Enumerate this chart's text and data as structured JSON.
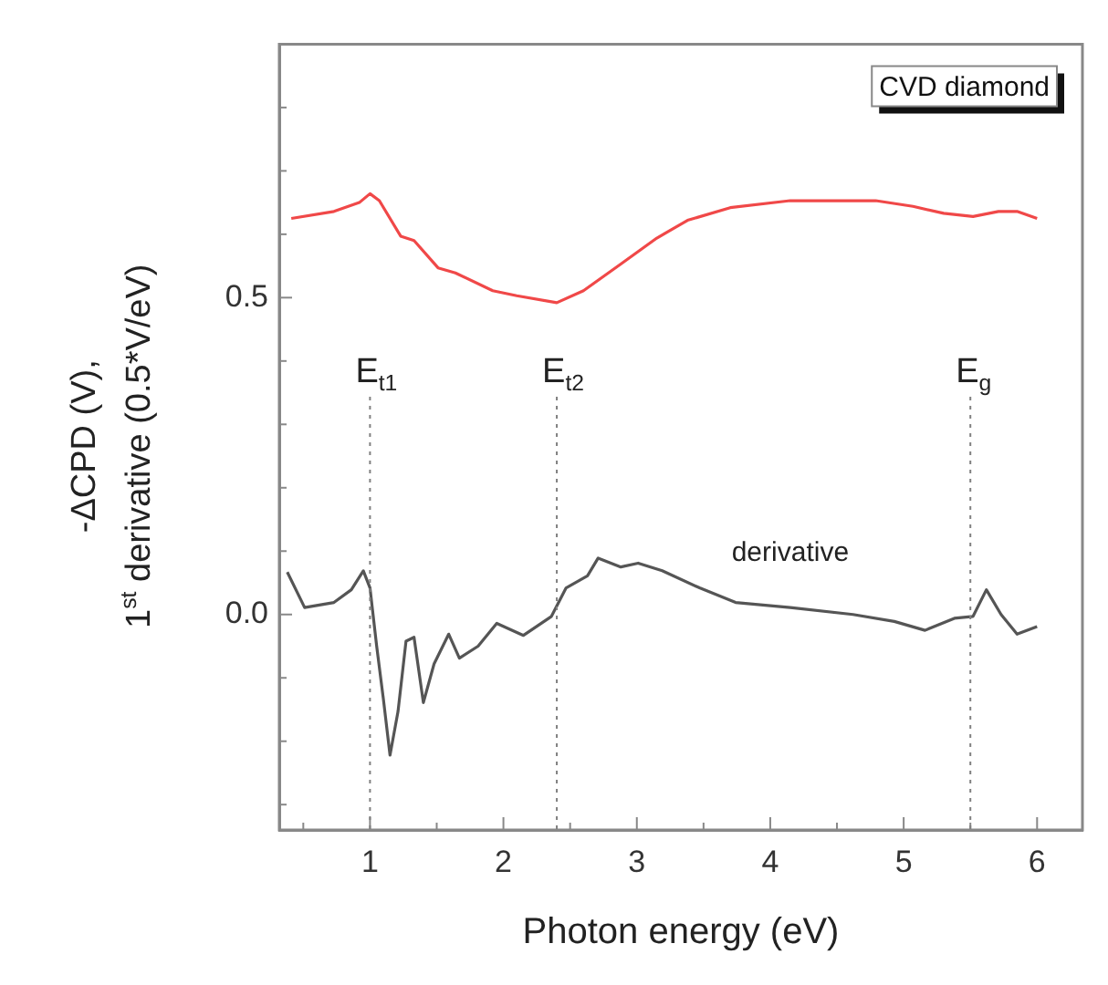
{
  "chart_data": {
    "type": "line",
    "xlabel": "Photon energy (eV)",
    "ylabel": "-ΔCPD (V),\n1$^{st}$ derivative (0.5*V/eV)",
    "xlim": [
      0.32,
      6.34
    ],
    "ylim": [
      -0.34,
      0.9
    ],
    "xticks": [
      {
        "value": 0.5,
        "label": null
      },
      1,
      {
        "value": 1.5,
        "label": null
      },
      2,
      {
        "value": 2.5,
        "label": null
      },
      3,
      {
        "value": 3.5,
        "label": null
      },
      4,
      {
        "value": 4.5,
        "label": null
      },
      5,
      {
        "value": 5.5,
        "label": null
      },
      6
    ],
    "yticks": [
      {
        "value": -0.3,
        "label": null
      },
      {
        "value": -0.2,
        "label": null
      },
      {
        "value": -0.1,
        "label": null
      },
      {
        "value": 0,
        "label": "0.0"
      },
      {
        "value": 0.1,
        "label": null
      },
      {
        "value": 0.2,
        "label": null
      },
      {
        "value": 0.3,
        "label": null
      },
      {
        "value": 0.4,
        "label": null
      },
      0.5,
      {
        "value": 0.6,
        "label": null
      },
      {
        "value": 0.7,
        "label": null
      },
      {
        "value": 0.8,
        "label": null
      }
    ],
    "grid": false,
    "legend": false,
    "marker": "none",
    "line_style": "solid",
    "annotations": [
      "CVD diamond"
    ],
    "ref_lines": [
      {
        "axis": "x",
        "value": 1.0,
        "label": "E$_{t1}$",
        "color": "#808080",
        "line_style": "dotted"
      },
      {
        "axis": "x",
        "value": 2.4,
        "label": "E$_{t2}$",
        "color": "#808080",
        "line_style": "dotted"
      },
      {
        "axis": "x",
        "value": 5.5,
        "label": "E$_{g}$",
        "color": "#808080",
        "line_style": "dotted"
      }
    ],
    "series": [
      {
        "color": "#f04848",
        "x": [
          0.41,
          0.73,
          0.92,
          1.0,
          1.07,
          1.23,
          1.33,
          1.51,
          1.64,
          1.92,
          2.1,
          2.4,
          2.6,
          2.88,
          3.15,
          3.38,
          3.7,
          4.15,
          4.79,
          5.07,
          5.3,
          5.52,
          5.71,
          5.85,
          6.0
        ],
        "values": [
          0.625,
          0.636,
          0.65,
          0.664,
          0.653,
          0.597,
          0.59,
          0.547,
          0.539,
          0.511,
          0.503,
          0.492,
          0.511,
          0.553,
          0.594,
          0.622,
          0.642,
          0.653,
          0.653,
          0.644,
          0.633,
          0.628,
          0.636,
          0.636,
          0.625
        ]
      },
      {
        "name": "derivative",
        "color": "#555555",
        "x": [
          0.38,
          0.51,
          0.73,
          0.86,
          0.95,
          1.0,
          1.05,
          1.1,
          1.15,
          1.21,
          1.27,
          1.33,
          1.4,
          1.48,
          1.59,
          1.67,
          1.81,
          1.95,
          2.15,
          2.36,
          2.47,
          2.63,
          2.71,
          2.88,
          3.01,
          3.19,
          3.47,
          3.74,
          4.15,
          4.62,
          4.93,
          5.16,
          5.38,
          5.52,
          5.62,
          5.73,
          5.85,
          6.0
        ],
        "values": [
          0.067,
          0.011,
          0.019,
          0.039,
          0.069,
          0.042,
          -0.05,
          -0.133,
          -0.222,
          -0.153,
          -0.042,
          -0.036,
          -0.139,
          -0.078,
          -0.031,
          -0.069,
          -0.05,
          -0.014,
          -0.033,
          -0.003,
          0.042,
          0.061,
          0.089,
          0.075,
          0.081,
          0.069,
          0.042,
          0.019,
          0.011,
          0,
          -0.011,
          -0.025,
          -0.006,
          -0.003,
          0.039,
          0,
          -0.031,
          -0.019
        ]
      }
    ]
  }
}
